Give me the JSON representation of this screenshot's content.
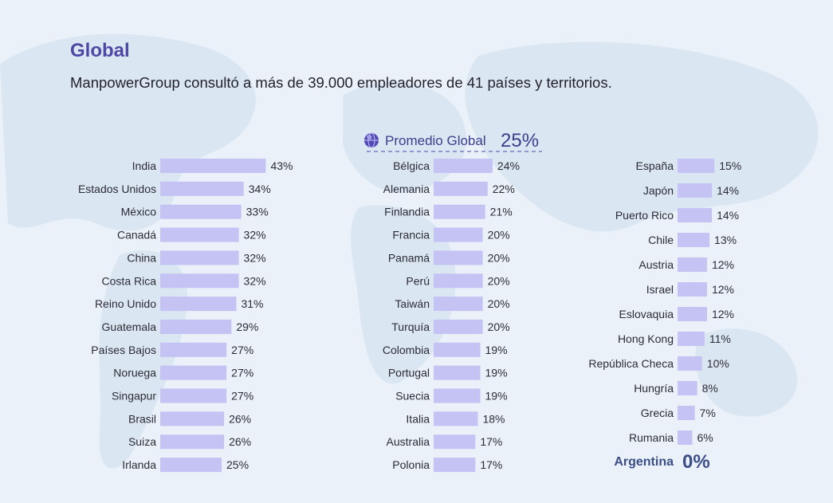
{
  "header": {
    "title": "Global",
    "subtitle": "ManpowerGroup consultó a más de 39.000 empleadores de 41 países y territorios."
  },
  "average": {
    "label": "Promedio Global",
    "value": "25%"
  },
  "highlight": {
    "label": "Argentina",
    "value": "0%"
  },
  "colors": {
    "bar": "#c4c3f4",
    "title": "#4e47a3",
    "average": "#3b3f8c",
    "highlight": "#3c4e86"
  },
  "chart_data": {
    "type": "bar",
    "orientation": "horizontal",
    "unit": "%",
    "columns": [
      {
        "categories": [
          "India",
          "Estados Unidos",
          "México",
          "Canadá",
          "China",
          "Costa Rica",
          "Reino Unido",
          "Guatemala",
          "Países Bajos",
          "Noruega",
          "Singapur",
          "Brasil",
          "Suiza",
          "Irlanda"
        ],
        "values": [
          43,
          34,
          33,
          32,
          32,
          32,
          31,
          29,
          27,
          27,
          27,
          26,
          26,
          25
        ]
      },
      {
        "categories": [
          "Bélgica",
          "Alemania",
          "Finlandia",
          "Francia",
          "Panamá",
          "Perú",
          "Taiwán",
          "Turquía",
          "Colombia",
          "Portugal",
          "Suecia",
          "Italia",
          "Australia",
          "Polonia"
        ],
        "values": [
          24,
          22,
          21,
          20,
          20,
          20,
          20,
          20,
          19,
          19,
          19,
          18,
          17,
          17
        ]
      },
      {
        "categories": [
          "España",
          "Japón",
          "Puerto Rico",
          "Chile",
          "Austria",
          "Israel",
          "Eslovaquia",
          "Hong Kong",
          "República Checa",
          "Hungría",
          "Grecia",
          "Rumania"
        ],
        "values": [
          15,
          14,
          14,
          13,
          12,
          12,
          12,
          11,
          10,
          8,
          7,
          6
        ]
      }
    ]
  }
}
